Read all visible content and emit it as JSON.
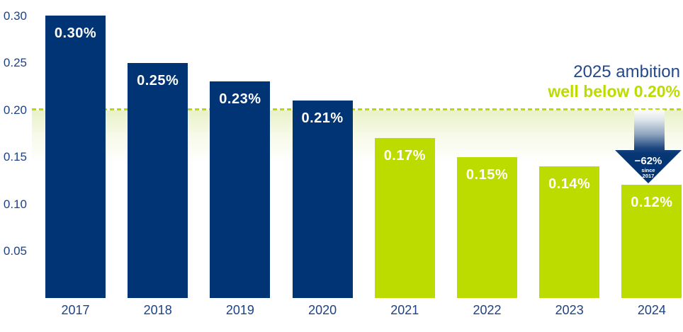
{
  "chart_data": {
    "type": "bar",
    "title": "",
    "xlabel": "",
    "ylabel": "",
    "categories": [
      "2017",
      "2018",
      "2019",
      "2020",
      "2021",
      "2022",
      "2023",
      "2024"
    ],
    "values": [
      0.3,
      0.25,
      0.23,
      0.21,
      0.17,
      0.15,
      0.14,
      0.12
    ],
    "bar_labels": [
      "0.30%",
      "0.25%",
      "0.23%",
      "0.21%",
      "0.17%",
      "0.15%",
      "0.14%",
      "0.12%"
    ],
    "bar_colors": [
      "#003474",
      "#003474",
      "#003474",
      "#003474",
      "#bcdc00",
      "#bcdc00",
      "#bcdc00",
      "#bcdc00"
    ],
    "ylim": [
      0,
      0.315
    ],
    "yticks": [
      {
        "value": 0.3,
        "label": "0.30"
      },
      {
        "value": 0.25,
        "label": "0.25"
      },
      {
        "value": 0.2,
        "label": "0.20"
      },
      {
        "value": 0.15,
        "label": "0.15"
      },
      {
        "value": 0.1,
        "label": "0.10"
      },
      {
        "value": 0.05,
        "label": "0.05"
      }
    ],
    "grid": false,
    "legend": null,
    "reference_line": {
      "value": 0.2,
      "style": "dashed",
      "color": "#bcdc00"
    }
  },
  "annotation": {
    "line1": "2025 ambition",
    "line2": "well below 0.20%"
  },
  "arrow_callout": {
    "value": "−62%",
    "since_word": "since",
    "since_year": "2017"
  },
  "colors": {
    "navy_bar": "#003474",
    "lime": "#bcdc00",
    "text_navy": "#1e4283",
    "band_green": "#e7f0c5",
    "label_white": "#ffffff"
  }
}
